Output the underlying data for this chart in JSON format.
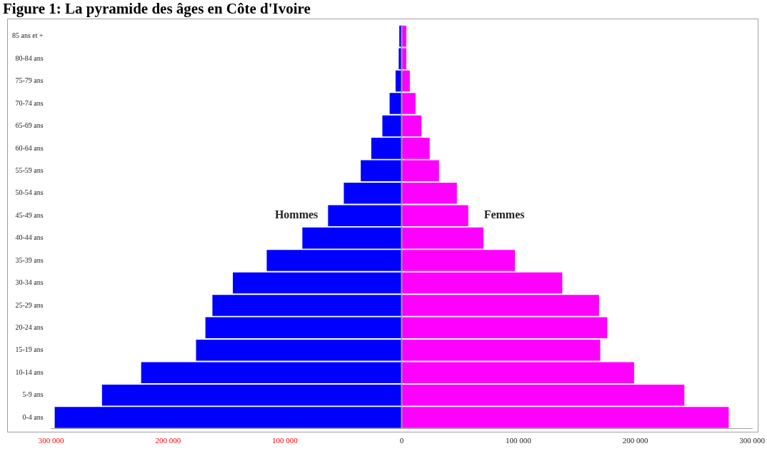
{
  "chart_data": {
    "type": "bar",
    "orientation": "horizontal",
    "stacked": true,
    "title": "Figure 1: La pyramide des âges en Côte d'Ivoire",
    "categories": [
      "85 ans et +",
      "80-84 ans",
      "75-79 ans",
      "70-74 ans",
      "65-69 ans",
      "60-64 ans",
      "55-59 ans",
      "50-54 ans",
      "45-49 ans",
      "40-44 ans",
      "35-39 ans",
      "30-34 ans",
      "25-29 ans",
      "20-24 ans",
      "15-19 ans",
      "10-14 ans",
      "5-9 ans",
      "0-4 ans"
    ],
    "series": [
      {
        "name": "Hommes",
        "color": "#0000ff",
        "values": [
          -2000,
          -2500,
          -5200,
          -10300,
          -16500,
          -26000,
          -35000,
          -49500,
          -63000,
          -85000,
          -115500,
          -144500,
          -162000,
          -168000,
          -176000,
          -223000,
          -256500,
          -297000
        ]
      },
      {
        "name": "Femmes",
        "color": "#ff00ff",
        "values": [
          4000,
          4000,
          7000,
          11900,
          17000,
          24000,
          32000,
          47300,
          57000,
          70000,
          97000,
          137500,
          169000,
          176000,
          170000,
          199000,
          242000,
          280000
        ]
      }
    ],
    "xlim": [
      -300000,
      300000
    ],
    "xticks": [
      {
        "value": -300000,
        "label": "300 000"
      },
      {
        "value": -200000,
        "label": "200 000"
      },
      {
        "value": -100000,
        "label": "100 000"
      },
      0,
      {
        "value": 100000,
        "label": "100 000"
      },
      {
        "value": 200000,
        "label": "200 000"
      },
      {
        "value": 300000,
        "label": "300 000"
      }
    ],
    "ref_lines": [
      {
        "axis": "x",
        "value": 0,
        "color": "#a0a0a0"
      }
    ],
    "grid": false,
    "legend": false
  }
}
